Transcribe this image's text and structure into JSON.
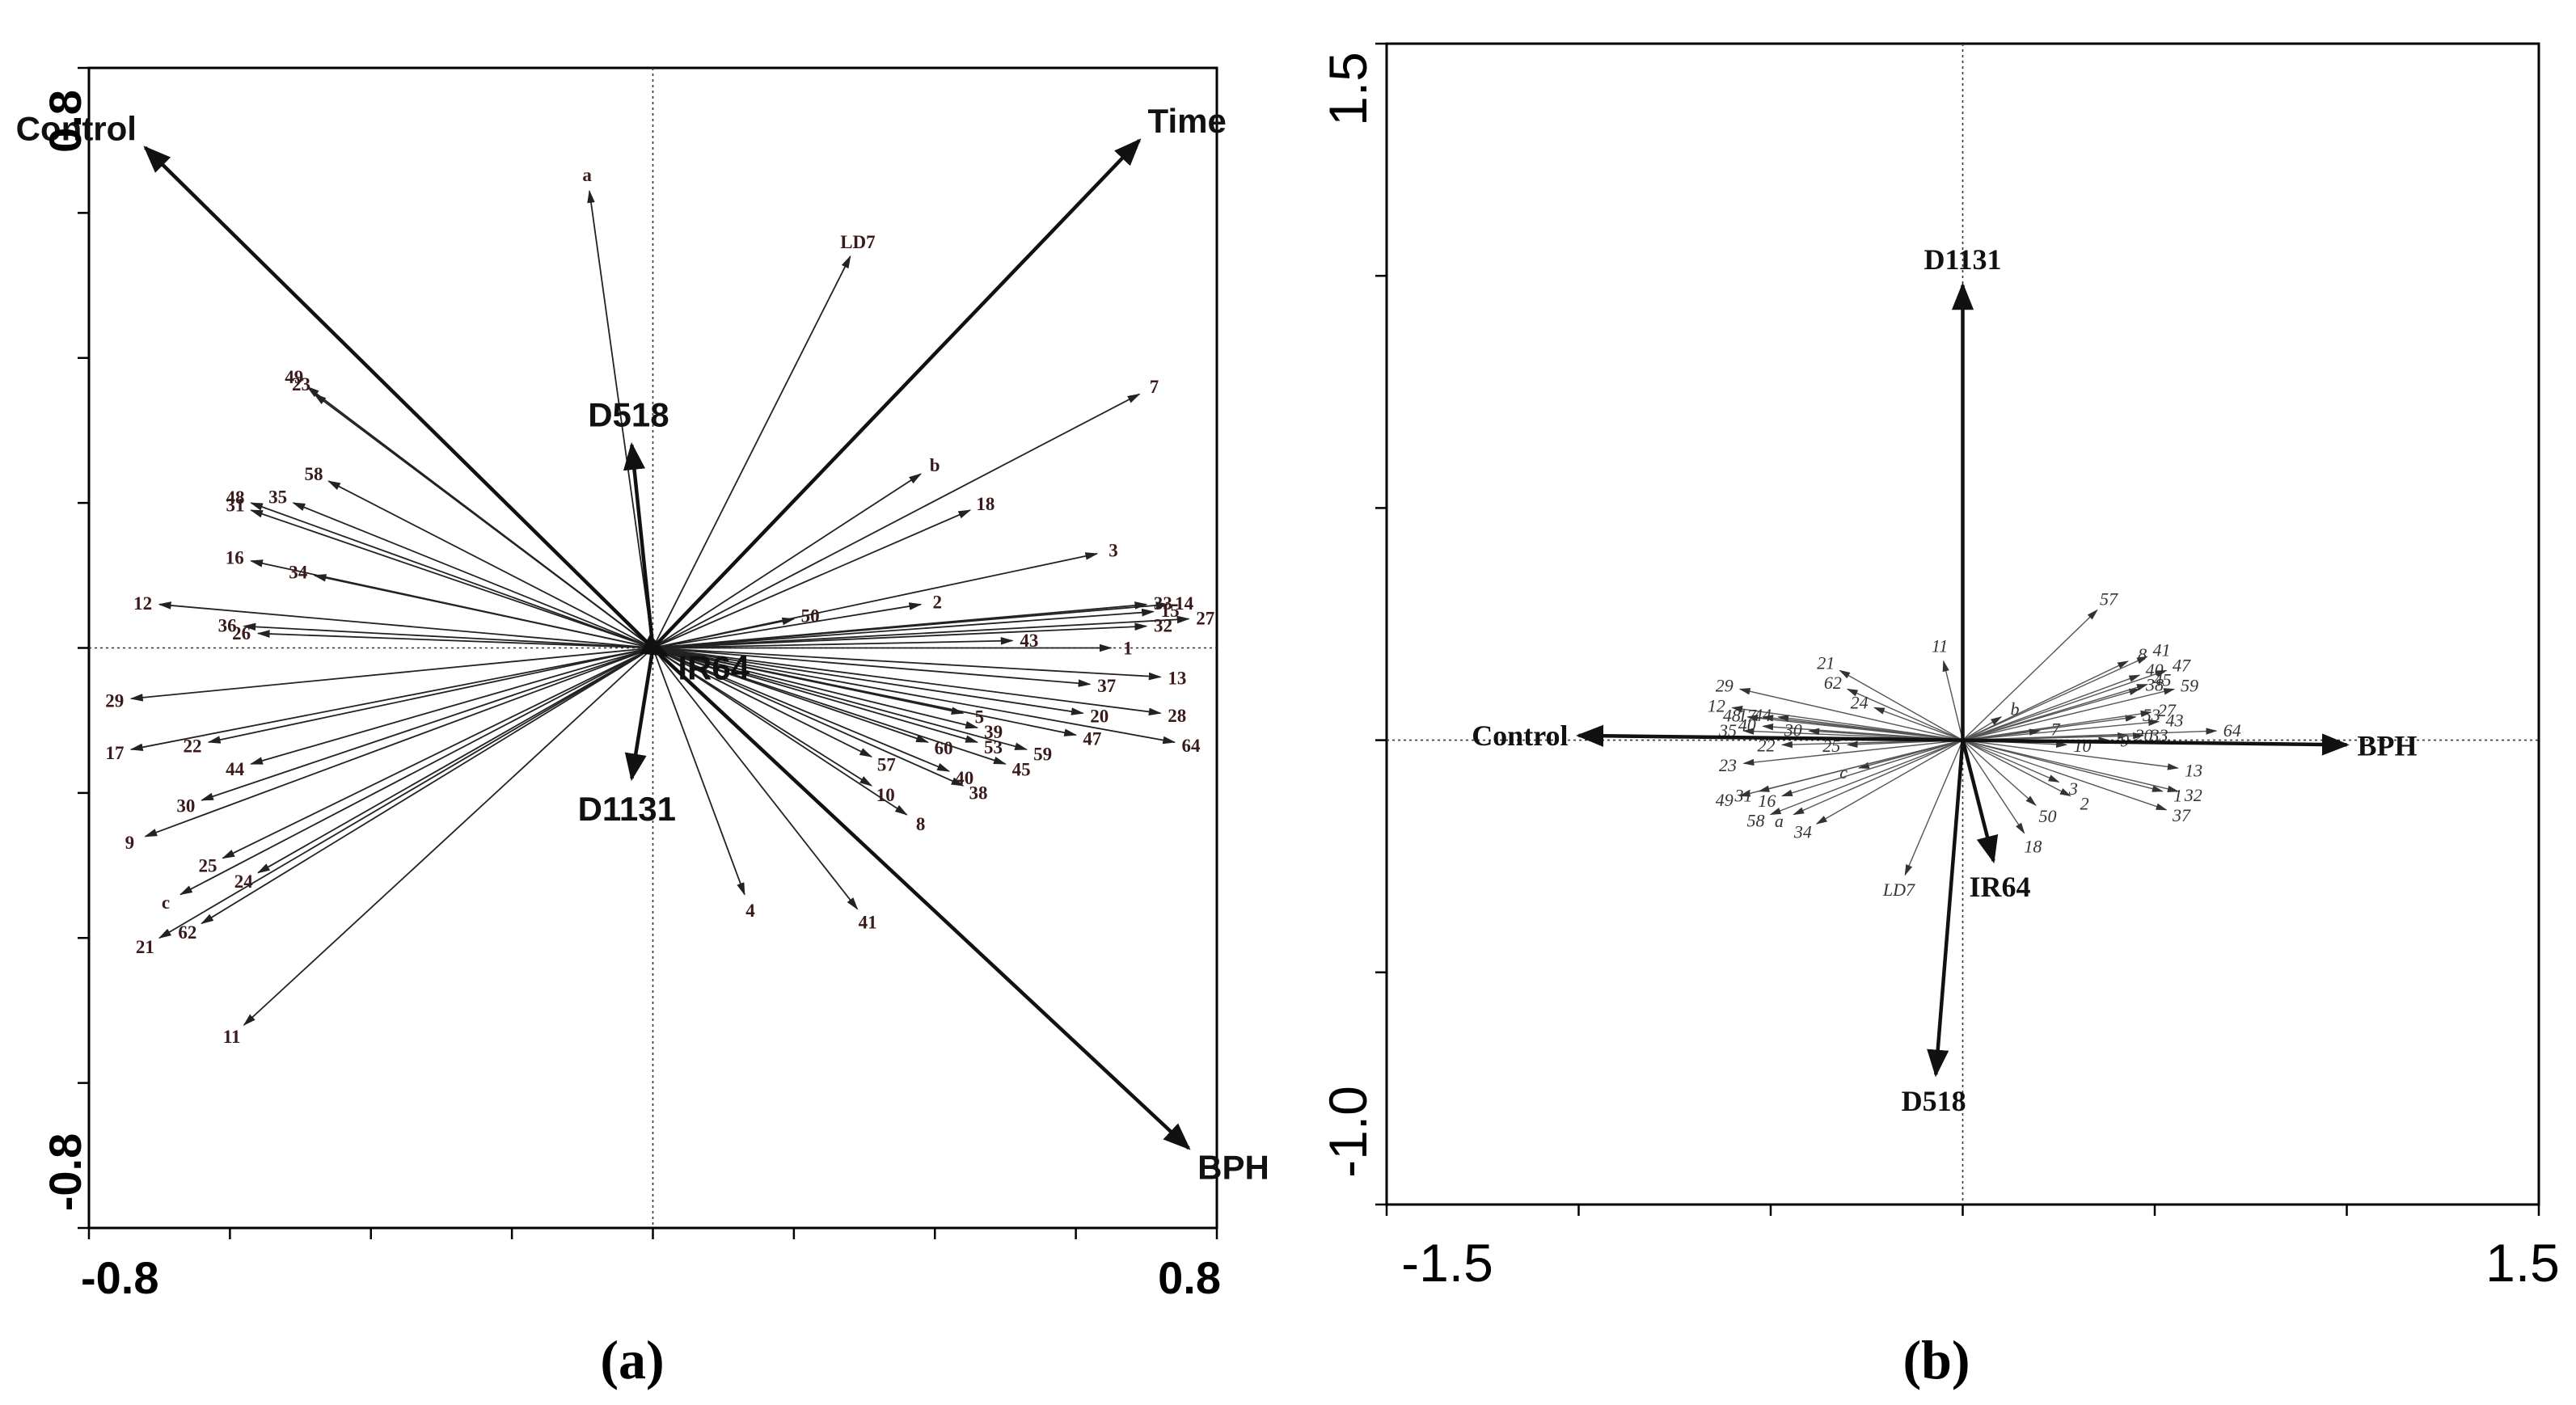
{
  "panels": [
    {
      "subcaption": "(a)",
      "xlim": [
        -0.8,
        0.8
      ],
      "ylim": [
        -0.8,
        0.8
      ],
      "x_tick_labels": [
        "-0.8",
        "0.8"
      ],
      "y_tick_labels": [
        "0.8",
        "-0.8"
      ],
      "origin_lines": true
    },
    {
      "subcaption": "(b)",
      "xlim": [
        -1.5,
        1.5
      ],
      "ylim": [
        -1.0,
        1.5
      ],
      "x_tick_labels": [
        "-1.5",
        "1.5"
      ],
      "y_tick_labels": [
        "1.5",
        "-1.0"
      ],
      "origin_lines": true
    }
  ],
  "chart_data": [
    {
      "type": "scatter",
      "subtype": "biplot",
      "xlim": [
        -0.8,
        0.8
      ],
      "ylim": [
        -0.8,
        0.8
      ],
      "grid": false,
      "legend": "none",
      "env_vectors": [
        {
          "label": "Control",
          "x": -0.72,
          "y": 0.69
        },
        {
          "label": "Time",
          "x": 0.69,
          "y": 0.7
        },
        {
          "label": "BPH",
          "x": 0.76,
          "y": -0.69
        },
        {
          "label": "D518",
          "x": -0.03,
          "y": 0.28
        },
        {
          "label": "D1131",
          "x": -0.03,
          "y": -0.18
        },
        {
          "label": "IR64",
          "x": 0.02,
          "y": -0.01
        }
      ],
      "species_vectors": [
        {
          "label": "a",
          "x": -0.09,
          "y": 0.63
        },
        {
          "label": "LD7",
          "x": 0.28,
          "y": 0.54
        },
        {
          "label": "49",
          "x": -0.49,
          "y": 0.36
        },
        {
          "label": "23",
          "x": -0.48,
          "y": 0.35
        },
        {
          "label": "7",
          "x": 0.69,
          "y": 0.35
        },
        {
          "label": "b",
          "x": 0.38,
          "y": 0.24
        },
        {
          "label": "18",
          "x": 0.45,
          "y": 0.19
        },
        {
          "label": "58",
          "x": -0.46,
          "y": 0.23
        },
        {
          "label": "35",
          "x": -0.51,
          "y": 0.2
        },
        {
          "label": "48",
          "x": -0.57,
          "y": 0.2
        },
        {
          "label": "31",
          "x": -0.57,
          "y": 0.19
        },
        {
          "label": "16",
          "x": -0.57,
          "y": 0.12
        },
        {
          "label": "34",
          "x": -0.48,
          "y": 0.1
        },
        {
          "label": "3",
          "x": 0.63,
          "y": 0.13
        },
        {
          "label": "12",
          "x": -0.7,
          "y": 0.06
        },
        {
          "label": "36",
          "x": -0.58,
          "y": 0.03
        },
        {
          "label": "26",
          "x": -0.56,
          "y": 0.02
        },
        {
          "label": "2",
          "x": 0.38,
          "y": 0.06
        },
        {
          "label": "50",
          "x": 0.2,
          "y": 0.04
        },
        {
          "label": "33",
          "x": 0.7,
          "y": 0.06
        },
        {
          "label": "14",
          "x": 0.73,
          "y": 0.06
        },
        {
          "label": "15",
          "x": 0.71,
          "y": 0.05
        },
        {
          "label": "27",
          "x": 0.76,
          "y": 0.04
        },
        {
          "label": "32",
          "x": 0.7,
          "y": 0.03
        },
        {
          "label": "1",
          "x": 0.65,
          "y": 0.0
        },
        {
          "label": "43",
          "x": 0.51,
          "y": 0.01
        },
        {
          "label": "13",
          "x": 0.72,
          "y": -0.04
        },
        {
          "label": "37",
          "x": 0.62,
          "y": -0.05
        },
        {
          "label": "28",
          "x": 0.72,
          "y": -0.09
        },
        {
          "label": "29",
          "x": -0.74,
          "y": -0.07
        },
        {
          "label": "20",
          "x": 0.61,
          "y": -0.09
        },
        {
          "label": "64",
          "x": 0.74,
          "y": -0.13
        },
        {
          "label": "47",
          "x": 0.6,
          "y": -0.12
        },
        {
          "label": "5",
          "x": 0.44,
          "y": -0.09
        },
        {
          "label": "39",
          "x": 0.46,
          "y": -0.11
        },
        {
          "label": "59",
          "x": 0.53,
          "y": -0.14
        },
        {
          "label": "60",
          "x": 0.39,
          "y": -0.13
        },
        {
          "label": "53",
          "x": 0.46,
          "y": -0.13
        },
        {
          "label": "45",
          "x": 0.5,
          "y": -0.16
        },
        {
          "label": "57",
          "x": 0.31,
          "y": -0.15
        },
        {
          "label": "40",
          "x": 0.42,
          "y": -0.17
        },
        {
          "label": "38",
          "x": 0.44,
          "y": -0.19
        },
        {
          "label": "10",
          "x": 0.31,
          "y": -0.19
        },
        {
          "label": "8",
          "x": 0.36,
          "y": -0.23
        },
        {
          "label": "17",
          "x": -0.74,
          "y": -0.14
        },
        {
          "label": "22",
          "x": -0.63,
          "y": -0.13
        },
        {
          "label": "44",
          "x": -0.57,
          "y": -0.16
        },
        {
          "label": "30",
          "x": -0.64,
          "y": -0.21
        },
        {
          "label": "9",
          "x": -0.72,
          "y": -0.26
        },
        {
          "label": "25",
          "x": -0.61,
          "y": -0.29
        },
        {
          "label": "24",
          "x": -0.56,
          "y": -0.31
        },
        {
          "label": "c",
          "x": -0.67,
          "y": -0.34
        },
        {
          "label": "21",
          "x": -0.7,
          "y": -0.4
        },
        {
          "label": "62",
          "x": -0.64,
          "y": -0.38
        },
        {
          "label": "11",
          "x": -0.58,
          "y": -0.52
        },
        {
          "label": "4",
          "x": 0.13,
          "y": -0.34
        },
        {
          "label": "41",
          "x": 0.29,
          "y": -0.36
        }
      ]
    },
    {
      "type": "scatter",
      "subtype": "biplot",
      "xlim": [
        -1.5,
        1.5
      ],
      "ylim": [
        -1.0,
        1.5
      ],
      "grid": false,
      "legend": "none",
      "env_vectors": [
        {
          "label": "D1131",
          "x": 0.0,
          "y": 0.98
        },
        {
          "label": "Control",
          "x": -1.0,
          "y": 0.01
        },
        {
          "label": "BPH",
          "x": 1.0,
          "y": -0.01
        },
        {
          "label": "IR64",
          "x": 0.08,
          "y": -0.26
        },
        {
          "label": "D518",
          "x": -0.07,
          "y": -0.72
        }
      ],
      "species_vectors": [
        {
          "label": "57",
          "x": 0.35,
          "y": 0.28
        },
        {
          "label": "11",
          "x": -0.05,
          "y": 0.17
        },
        {
          "label": "8",
          "x": 0.43,
          "y": 0.17
        },
        {
          "label": "41",
          "x": 0.48,
          "y": 0.18
        },
        {
          "label": "40",
          "x": 0.46,
          "y": 0.14
        },
        {
          "label": "47",
          "x": 0.53,
          "y": 0.15
        },
        {
          "label": "38",
          "x": 0.46,
          "y": 0.11
        },
        {
          "label": "45",
          "x": 0.48,
          "y": 0.12
        },
        {
          "label": "59",
          "x": 0.55,
          "y": 0.11
        },
        {
          "label": "b",
          "x": 0.1,
          "y": 0.05
        },
        {
          "label": "53",
          "x": 0.45,
          "y": 0.05
        },
        {
          "label": "27",
          "x": 0.49,
          "y": 0.06
        },
        {
          "label": "43",
          "x": 0.51,
          "y": 0.04
        },
        {
          "label": "64",
          "x": 0.66,
          "y": 0.02
        },
        {
          "label": "21",
          "x": -0.32,
          "y": 0.15
        },
        {
          "label": "62",
          "x": -0.3,
          "y": 0.11
        },
        {
          "label": "29",
          "x": -0.58,
          "y": 0.11
        },
        {
          "label": "24",
          "x": -0.23,
          "y": 0.07
        },
        {
          "label": "12",
          "x": -0.6,
          "y": 0.07
        },
        {
          "label": "48",
          "x": -0.56,
          "y": 0.05
        },
        {
          "label": "17",
          "x": -0.52,
          "y": 0.05
        },
        {
          "label": "44",
          "x": -0.48,
          "y": 0.05
        },
        {
          "label": "35",
          "x": -0.57,
          "y": 0.02
        },
        {
          "label": "40",
          "x": -0.52,
          "y": 0.03
        },
        {
          "label": "30",
          "x": -0.4,
          "y": 0.02
        },
        {
          "label": "22",
          "x": -0.47,
          "y": -0.01
        },
        {
          "label": "25",
          "x": -0.3,
          "y": -0.01
        },
        {
          "label": "c",
          "x": -0.27,
          "y": -0.06
        },
        {
          "label": "23",
          "x": -0.57,
          "y": -0.05
        },
        {
          "label": "49",
          "x": -0.58,
          "y": -0.12
        },
        {
          "label": "31",
          "x": -0.53,
          "y": -0.11
        },
        {
          "label": "16",
          "x": -0.47,
          "y": -0.12
        },
        {
          "label": "58",
          "x": -0.5,
          "y": -0.16
        },
        {
          "label": "a",
          "x": -0.44,
          "y": -0.16
        },
        {
          "label": "34",
          "x": -0.38,
          "y": -0.18
        },
        {
          "label": "LD7",
          "x": -0.15,
          "y": -0.29
        },
        {
          "label": "18",
          "x": 0.16,
          "y": -0.2
        },
        {
          "label": "50",
          "x": 0.19,
          "y": -0.14
        },
        {
          "label": "2",
          "x": 0.28,
          "y": -0.12
        },
        {
          "label": "3",
          "x": 0.25,
          "y": -0.09
        },
        {
          "label": "7",
          "x": 0.2,
          "y": 0.02
        },
        {
          "label": "10",
          "x": 0.27,
          "y": -0.01
        },
        {
          "label": "9",
          "x": 0.38,
          "y": 0.0
        },
        {
          "label": "20",
          "x": 0.43,
          "y": 0.01
        },
        {
          "label": "33",
          "x": 0.47,
          "y": 0.01
        },
        {
          "label": "13",
          "x": 0.56,
          "y": -0.06
        },
        {
          "label": "1",
          "x": 0.52,
          "y": -0.11
        },
        {
          "label": "32",
          "x": 0.56,
          "y": -0.11
        },
        {
          "label": "37",
          "x": 0.53,
          "y": -0.15
        }
      ]
    }
  ]
}
